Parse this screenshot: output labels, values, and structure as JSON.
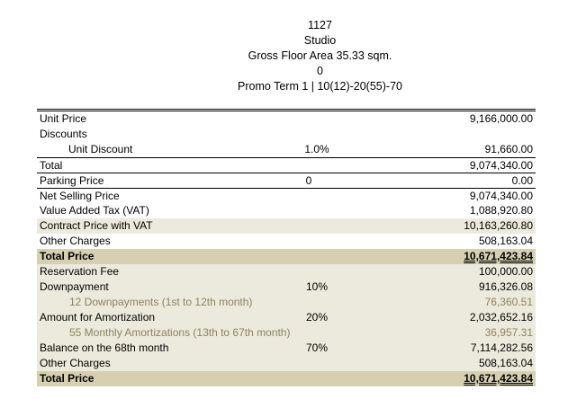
{
  "header": {
    "unit_no": "1127",
    "unit_type": "Studio",
    "floor_area": "Gross Floor Area 35.33 sqm.",
    "floor_no": "0",
    "promo": "Promo Term 1 | 10(12)-20(55)-70"
  },
  "rows": {
    "unit_price": {
      "label": "Unit Price",
      "mid": "",
      "amount": "9,166,000.00"
    },
    "discounts": {
      "label": "Discounts",
      "mid": "",
      "amount": ""
    },
    "unit_discount": {
      "label": "Unit Discount",
      "mid": "1.0%",
      "amount": "91,660.00"
    },
    "total": {
      "label": "Total",
      "mid": "",
      "amount": "9,074,340.00"
    },
    "parking": {
      "label": "Parking Price",
      "mid": "0",
      "amount": "0.00"
    },
    "nsp": {
      "label": "Net Selling Price",
      "mid": "",
      "amount": "9,074,340.00"
    },
    "vat": {
      "label": "Value Added Tax (VAT)",
      "mid": "",
      "amount": "1,088,920.80"
    },
    "contract": {
      "label": "Contract Price with VAT",
      "mid": "",
      "amount": "10,163,260.80"
    },
    "other1": {
      "label": "Other Charges",
      "mid": "",
      "amount": "508,163.04"
    },
    "total_price1": {
      "label": "Total Price",
      "mid": "",
      "amount": "10,671,423.84"
    },
    "reservation": {
      "label": "Reservation Fee",
      "mid": "",
      "amount": "100,000.00"
    },
    "downpayment": {
      "label": "Downpayment",
      "mid": "10%",
      "amount": "916,326.08"
    },
    "dp_monthly": {
      "label": "12 Downpayments (1st to 12th month)",
      "mid": "",
      "amount": "76,360.51"
    },
    "amortization": {
      "label": "Amount for Amortization",
      "mid": "20%",
      "amount": "2,032,652.16"
    },
    "am_monthly": {
      "label": "55 Monthly Amortizations (13th to 67th month)",
      "mid": "",
      "amount": "36,957.31"
    },
    "balance": {
      "label": "Balance on the 68th month",
      "mid": "70%",
      "amount": "7,114,282.56"
    },
    "other2": {
      "label": "Other Charges",
      "mid": "",
      "amount": "508,163.04"
    },
    "total_price2": {
      "label": "Total Price",
      "mid": "",
      "amount": "10,671,423.84"
    }
  },
  "colors": {
    "shaded_row": "#ece9dd",
    "total_row": "#d6cfb2",
    "sub_text": "#8f835f"
  }
}
